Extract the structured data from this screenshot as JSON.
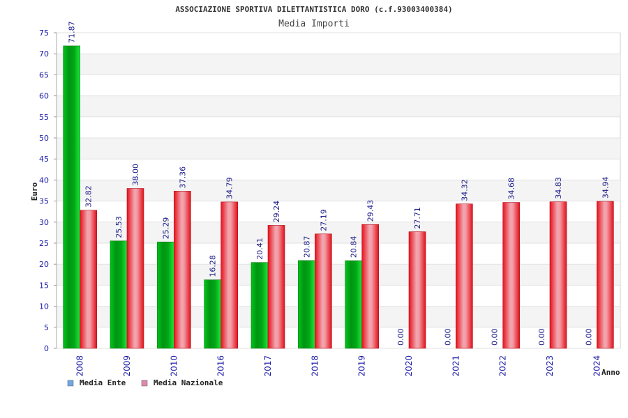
{
  "chart_data": {
    "type": "bar",
    "title": "ASSOCIAZIONE SPORTIVA DILETTANTISTICA DORO (c.f.93003400384)",
    "subtitle": "Media Importi",
    "ylabel": "Euro",
    "xlabel": "Anno",
    "ylim": [
      0,
      75
    ],
    "ytick_step": 5,
    "grid": true,
    "legend_position": "bottom-left",
    "categories": [
      "2008",
      "2009",
      "2010",
      "2016",
      "2017",
      "2018",
      "2019",
      "2020",
      "2021",
      "2022",
      "2023",
      "2024"
    ],
    "series": [
      {
        "name": "Media Ente",
        "legend_color": "#6fa8e6",
        "bar_color": "#0ca81c",
        "values": [
          71.87,
          25.53,
          25.29,
          16.28,
          20.41,
          20.87,
          20.84,
          0.0,
          0.0,
          0.0,
          0.0,
          0.0
        ]
      },
      {
        "name": "Media Nazionale",
        "legend_color": "#e088b0",
        "bar_color": "#e8242e",
        "values": [
          32.82,
          38.0,
          37.36,
          34.79,
          29.24,
          27.19,
          29.43,
          27.71,
          34.32,
          34.68,
          34.83,
          34.94
        ]
      }
    ]
  }
}
